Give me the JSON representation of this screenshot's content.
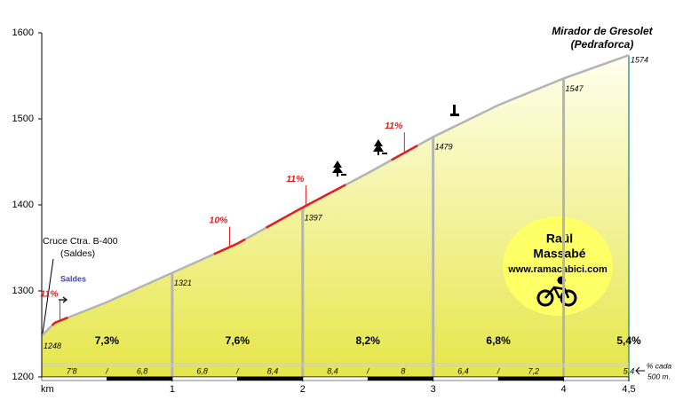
{
  "chart_data": {
    "type": "area",
    "title": "Mirador de Gresolet",
    "subtitle": "(Pedraforca)",
    "x_label": "km",
    "x": [
      0,
      0.1,
      0.5,
      1,
      1.5,
      2,
      2.5,
      3,
      3.5,
      4,
      4.5
    ],
    "values": [
      1248,
      1263,
      1287,
      1321,
      1355,
      1397,
      1437,
      1479,
      1516,
      1547,
      1574
    ],
    "color": "#b4b4b4",
    "xlim": [
      0,
      4.5
    ],
    "xticks": [
      1,
      2,
      3,
      4,
      {
        "value": 4.5,
        "label": "4,5"
      }
    ],
    "ylim": [
      1200,
      1600
    ],
    "yticks": [
      1200,
      1300,
      1400,
      1500,
      1600
    ],
    "sections": {
      "values": [
        7.3,
        7.6,
        8.2,
        6.8,
        5.4
      ],
      "value_labels": [
        "7,3%",
        "7,6%",
        "8,2%",
        "6,8%",
        "5,4%"
      ]
    },
    "half_km": {
      "values": [
        7.8,
        6.8,
        6.8,
        8.4,
        8.4,
        8,
        6.4,
        7.2,
        5.4
      ],
      "value_labels": [
        "7'8",
        "6,8",
        "6,8",
        "8,4",
        "8,4",
        "8",
        "6,4",
        "7,2",
        "5,4"
      ]
    },
    "half_km_caption": [
      "% cada",
      "500 m."
    ],
    "steep_sections": [
      {
        "label": "11%",
        "from": 0.08,
        "to": 0.2
      },
      {
        "label": "10%",
        "from": 1.32,
        "to": 1.56
      },
      {
        "label": "11%",
        "from": 1.72,
        "to": 2.33
      },
      {
        "label": "11%",
        "from": 2.68,
        "to": 2.88
      }
    ],
    "annotations": {
      "junction": [
        "Cruce Ctra. B-400",
        "(Saldes)"
      ],
      "direction": "Saldes"
    },
    "credit": [
      "Raül",
      "Massabé",
      "www.ramacabici.com"
    ]
  }
}
